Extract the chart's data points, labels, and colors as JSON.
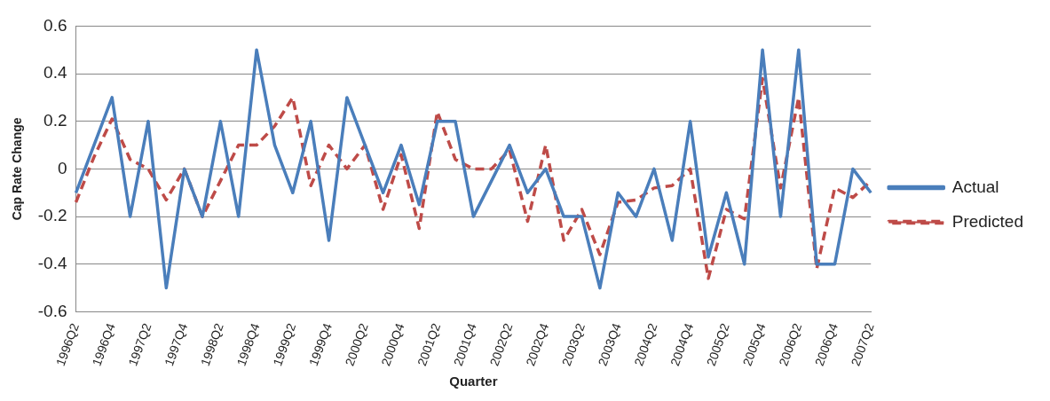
{
  "chart_data": {
    "type": "line",
    "xlabel": "Quarter",
    "ylabel": "Cap Rate Change",
    "categories": [
      "1996Q2",
      null,
      "1996Q4",
      null,
      "1997Q2",
      null,
      "1997Q4",
      null,
      "1998Q2",
      null,
      "1998Q4",
      null,
      "1999Q2",
      null,
      "1999Q4",
      null,
      "2000Q2",
      null,
      "2000Q4",
      null,
      "2001Q2",
      null,
      "2001Q4",
      null,
      "2002Q2",
      null,
      "2002Q4",
      null,
      "2003Q2",
      null,
      "2003Q4",
      null,
      "2004Q2",
      null,
      "2004Q4",
      null,
      "2005Q2",
      null,
      "2005Q4",
      null,
      "2006Q2",
      null,
      "2006Q4",
      null,
      "2007Q2"
    ],
    "series": [
      {
        "name": "Actual",
        "color": "#4a7ebb",
        "line_style": "solid",
        "values": [
          -0.1,
          0.1,
          0.3,
          -0.2,
          0.2,
          -0.5,
          0,
          -0.2,
          0.2,
          -0.2,
          0.5,
          0.1,
          -0.1,
          0.2,
          -0.3,
          0.3,
          0.1,
          -0.1,
          0.1,
          -0.15,
          0.2,
          0.2,
          -0.2,
          -0.05,
          0.1,
          -0.1,
          0,
          -0.2,
          -0.2,
          -0.5,
          -0.1,
          -0.2,
          0,
          -0.3,
          0.2,
          -0.37,
          -0.1,
          -0.4,
          0.5,
          -0.2,
          0.5,
          -0.4,
          -0.4,
          0,
          -0.1
        ]
      },
      {
        "name": "Predicted",
        "color": "#be4b48",
        "line_style": "dashed",
        "values": [
          -0.14,
          0.05,
          0.21,
          0.04,
          0,
          -0.13,
          0,
          -0.2,
          -0.05,
          0.1,
          0.1,
          0.18,
          0.3,
          -0.07,
          0.1,
          0,
          0.1,
          -0.17,
          0.06,
          -0.25,
          0.24,
          0.04,
          0,
          0,
          0.08,
          -0.22,
          0.1,
          -0.3,
          -0.17,
          -0.36,
          -0.14,
          -0.13,
          -0.08,
          -0.07,
          0,
          -0.46,
          -0.17,
          -0.21,
          0.38,
          -0.08,
          0.3,
          -0.42,
          -0.08,
          -0.12,
          -0.05
        ]
      }
    ],
    "ylim": [
      -0.6,
      0.6
    ],
    "yticks": [
      -0.6,
      -0.4,
      -0.2,
      0,
      0.2,
      0.4,
      0.6
    ],
    "grid": "y",
    "legend": "right",
    "marker": "none"
  }
}
